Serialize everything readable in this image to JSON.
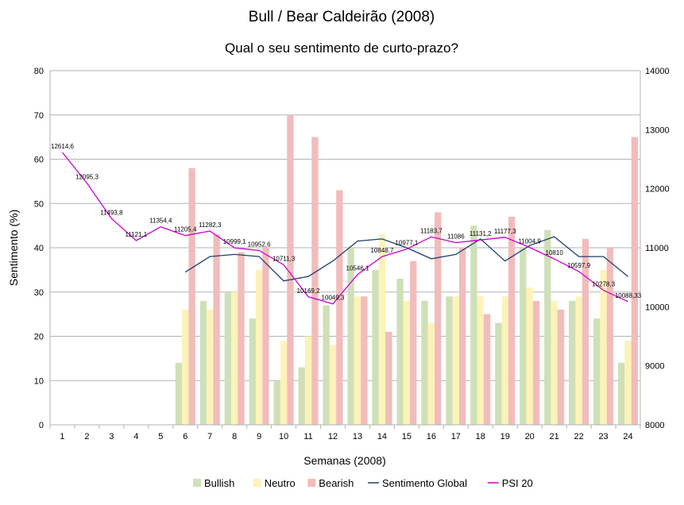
{
  "chart_data": {
    "type": "bar",
    "title": "Bull / Bear Caldeirão (2008)",
    "subtitle": "Qual o seu sentimento de curto-prazo?",
    "xlabel": "Semanas (2008)",
    "ylabel": "Sentimento (%)",
    "ylim": [
      0,
      80
    ],
    "y2lim": [
      8000,
      14000
    ],
    "yticks": [
      "0",
      "10",
      "20",
      "30",
      "40",
      "50",
      "60",
      "70",
      "80"
    ],
    "y2ticks": [
      "8000",
      "9000",
      "10000",
      "11000",
      "12000",
      "13000",
      "14000"
    ],
    "categories": [
      "1",
      "2",
      "3",
      "4",
      "5",
      "6",
      "7",
      "8",
      "9",
      "10",
      "11",
      "12",
      "13",
      "14",
      "15",
      "16",
      "17",
      "18",
      "19",
      "20",
      "21",
      "22",
      "23",
      "24"
    ],
    "grid": true,
    "legend_position": "bottom",
    "series": [
      {
        "name": "Bullish",
        "kind": "bar",
        "color": "#cfe0b8",
        "values": [
          null,
          null,
          null,
          null,
          null,
          14,
          28,
          30,
          24,
          10,
          13,
          27,
          40,
          35,
          33,
          28,
          29,
          45,
          23,
          40,
          44,
          28,
          24,
          14
        ]
      },
      {
        "name": "Neutro",
        "kind": "bar",
        "color": "#fdf3b8",
        "values": [
          null,
          null,
          null,
          null,
          null,
          26,
          26,
          30,
          35,
          19,
          20,
          18,
          29,
          43,
          28,
          23,
          29,
          29,
          29,
          31,
          28,
          29,
          35,
          19
        ]
      },
      {
        "name": "Bearish",
        "kind": "bar",
        "color": "#f2bcbc",
        "values": [
          null,
          null,
          null,
          null,
          null,
          58,
          43,
          39,
          40,
          70,
          65,
          53,
          29,
          21,
          37,
          48,
          40,
          25,
          47,
          28,
          26,
          42,
          40,
          65
        ]
      },
      {
        "name": "Sentimento Global",
        "kind": "line",
        "axis": "left",
        "color": "#1f3f6e",
        "values": [
          null,
          null,
          null,
          null,
          null,
          34.5,
          38,
          38.5,
          38,
          32.5,
          33.5,
          37,
          41.5,
          42,
          40,
          37.5,
          38.5,
          42,
          37,
          40.5,
          42.5,
          38,
          38,
          33.5
        ]
      },
      {
        "name": "PSI 20",
        "kind": "line",
        "axis": "right",
        "color": "#cc00cc",
        "values": [
          12614.6,
          12095.3,
          11493.8,
          11121.1,
          11354.4,
          11205.4,
          11282.3,
          10999.1,
          10952.6,
          10711.3,
          10169.2,
          10049.3,
          10546.1,
          10848.7,
          10977.1,
          11183.7,
          11086,
          11131.2,
          11177.3,
          11004.9,
          10810,
          10597.9,
          10278.3,
          10088.33
        ],
        "labels": [
          "12614,6",
          "12095,3",
          "11493,8",
          "11121,1",
          "11354,4",
          "11205,4",
          "11282,3",
          "10999,1",
          "10952,6",
          "10711,3",
          "10169,2",
          "10049,3",
          "10546,1",
          "10848,7",
          "10977,1",
          "11183,7",
          "11086",
          "11131,2",
          "11177,3",
          "11004,9",
          "10810",
          "10597,9",
          "10278,3",
          "10088,33"
        ]
      }
    ]
  }
}
